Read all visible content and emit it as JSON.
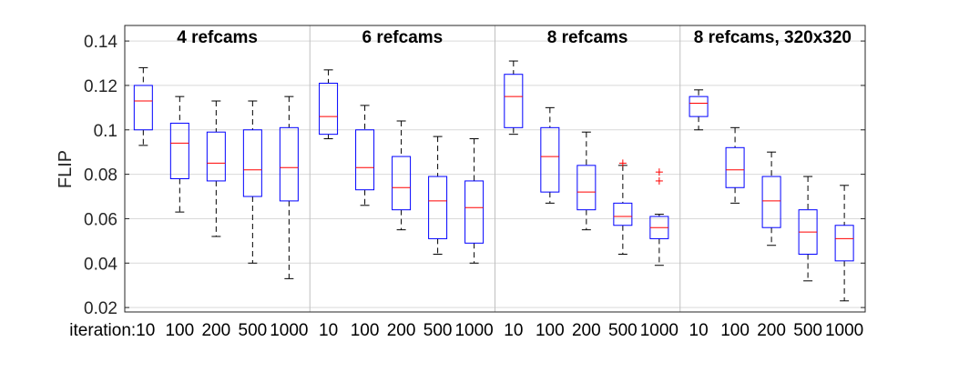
{
  "chart_data": {
    "type": "box",
    "ylabel": "FLIP",
    "ylim": [
      0.018,
      0.147
    ],
    "yticks": [
      0.02,
      0.04,
      0.06,
      0.08,
      0.1,
      0.12,
      0.14
    ],
    "ytick_labels": [
      "0.02",
      "0.04",
      "0.06",
      "0.08",
      "0.1",
      "0.12",
      "0.14"
    ],
    "grid": true,
    "x_prefix_label": "iteration:",
    "categories": [
      "10",
      "100",
      "200",
      "500",
      "1000"
    ],
    "colors": {
      "box": "#0000ff",
      "median": "#ff0000",
      "whisker": "#000000",
      "outlier": "#ff0000",
      "grid": "#d9d9d9",
      "divider": "#c0c0c0"
    },
    "groups": [
      {
        "title": "4 refcams",
        "boxes": [
          {
            "iteration": "10",
            "whisker_low": 0.093,
            "q1": 0.1,
            "median": 0.113,
            "q3": 0.12,
            "whisker_high": 0.128,
            "outliers": []
          },
          {
            "iteration": "100",
            "whisker_low": 0.063,
            "q1": 0.078,
            "median": 0.094,
            "q3": 0.103,
            "whisker_high": 0.115,
            "outliers": []
          },
          {
            "iteration": "200",
            "whisker_low": 0.052,
            "q1": 0.077,
            "median": 0.085,
            "q3": 0.099,
            "whisker_high": 0.113,
            "outliers": []
          },
          {
            "iteration": "500",
            "whisker_low": 0.04,
            "q1": 0.07,
            "median": 0.082,
            "q3": 0.1,
            "whisker_high": 0.113,
            "outliers": []
          },
          {
            "iteration": "1000",
            "whisker_low": 0.033,
            "q1": 0.068,
            "median": 0.083,
            "q3": 0.101,
            "whisker_high": 0.115,
            "outliers": []
          }
        ]
      },
      {
        "title": "6 refcams",
        "boxes": [
          {
            "iteration": "10",
            "whisker_low": 0.096,
            "q1": 0.098,
            "median": 0.106,
            "q3": 0.121,
            "whisker_high": 0.127,
            "outliers": []
          },
          {
            "iteration": "100",
            "whisker_low": 0.066,
            "q1": 0.073,
            "median": 0.083,
            "q3": 0.1,
            "whisker_high": 0.111,
            "outliers": []
          },
          {
            "iteration": "200",
            "whisker_low": 0.055,
            "q1": 0.064,
            "median": 0.074,
            "q3": 0.088,
            "whisker_high": 0.104,
            "outliers": []
          },
          {
            "iteration": "500",
            "whisker_low": 0.044,
            "q1": 0.051,
            "median": 0.068,
            "q3": 0.079,
            "whisker_high": 0.097,
            "outliers": []
          },
          {
            "iteration": "1000",
            "whisker_low": 0.04,
            "q1": 0.049,
            "median": 0.065,
            "q3": 0.077,
            "whisker_high": 0.096,
            "outliers": []
          }
        ]
      },
      {
        "title": "8 refcams",
        "boxes": [
          {
            "iteration": "10",
            "whisker_low": 0.098,
            "q1": 0.101,
            "median": 0.115,
            "q3": 0.125,
            "whisker_high": 0.131,
            "outliers": []
          },
          {
            "iteration": "100",
            "whisker_low": 0.067,
            "q1": 0.072,
            "median": 0.088,
            "q3": 0.101,
            "whisker_high": 0.11,
            "outliers": []
          },
          {
            "iteration": "200",
            "whisker_low": 0.055,
            "q1": 0.064,
            "median": 0.072,
            "q3": 0.084,
            "whisker_high": 0.099,
            "outliers": []
          },
          {
            "iteration": "500",
            "whisker_low": 0.044,
            "q1": 0.057,
            "median": 0.061,
            "q3": 0.067,
            "whisker_high": 0.084,
            "outliers": [
              0.085
            ]
          },
          {
            "iteration": "1000",
            "whisker_low": 0.039,
            "q1": 0.051,
            "median": 0.056,
            "q3": 0.061,
            "whisker_high": 0.062,
            "outliers": [
              0.081,
              0.077
            ]
          }
        ]
      },
      {
        "title": "8 refcams, 320x320",
        "boxes": [
          {
            "iteration": "10",
            "whisker_low": 0.1,
            "q1": 0.106,
            "median": 0.112,
            "q3": 0.115,
            "whisker_high": 0.118,
            "outliers": []
          },
          {
            "iteration": "100",
            "whisker_low": 0.067,
            "q1": 0.074,
            "median": 0.082,
            "q3": 0.092,
            "whisker_high": 0.101,
            "outliers": []
          },
          {
            "iteration": "200",
            "whisker_low": 0.048,
            "q1": 0.056,
            "median": 0.068,
            "q3": 0.079,
            "whisker_high": 0.09,
            "outliers": []
          },
          {
            "iteration": "500",
            "whisker_low": 0.032,
            "q1": 0.044,
            "median": 0.054,
            "q3": 0.064,
            "whisker_high": 0.079,
            "outliers": []
          },
          {
            "iteration": "1000",
            "whisker_low": 0.023,
            "q1": 0.041,
            "median": 0.051,
            "q3": 0.057,
            "whisker_high": 0.075,
            "outliers": []
          }
        ]
      }
    ]
  }
}
